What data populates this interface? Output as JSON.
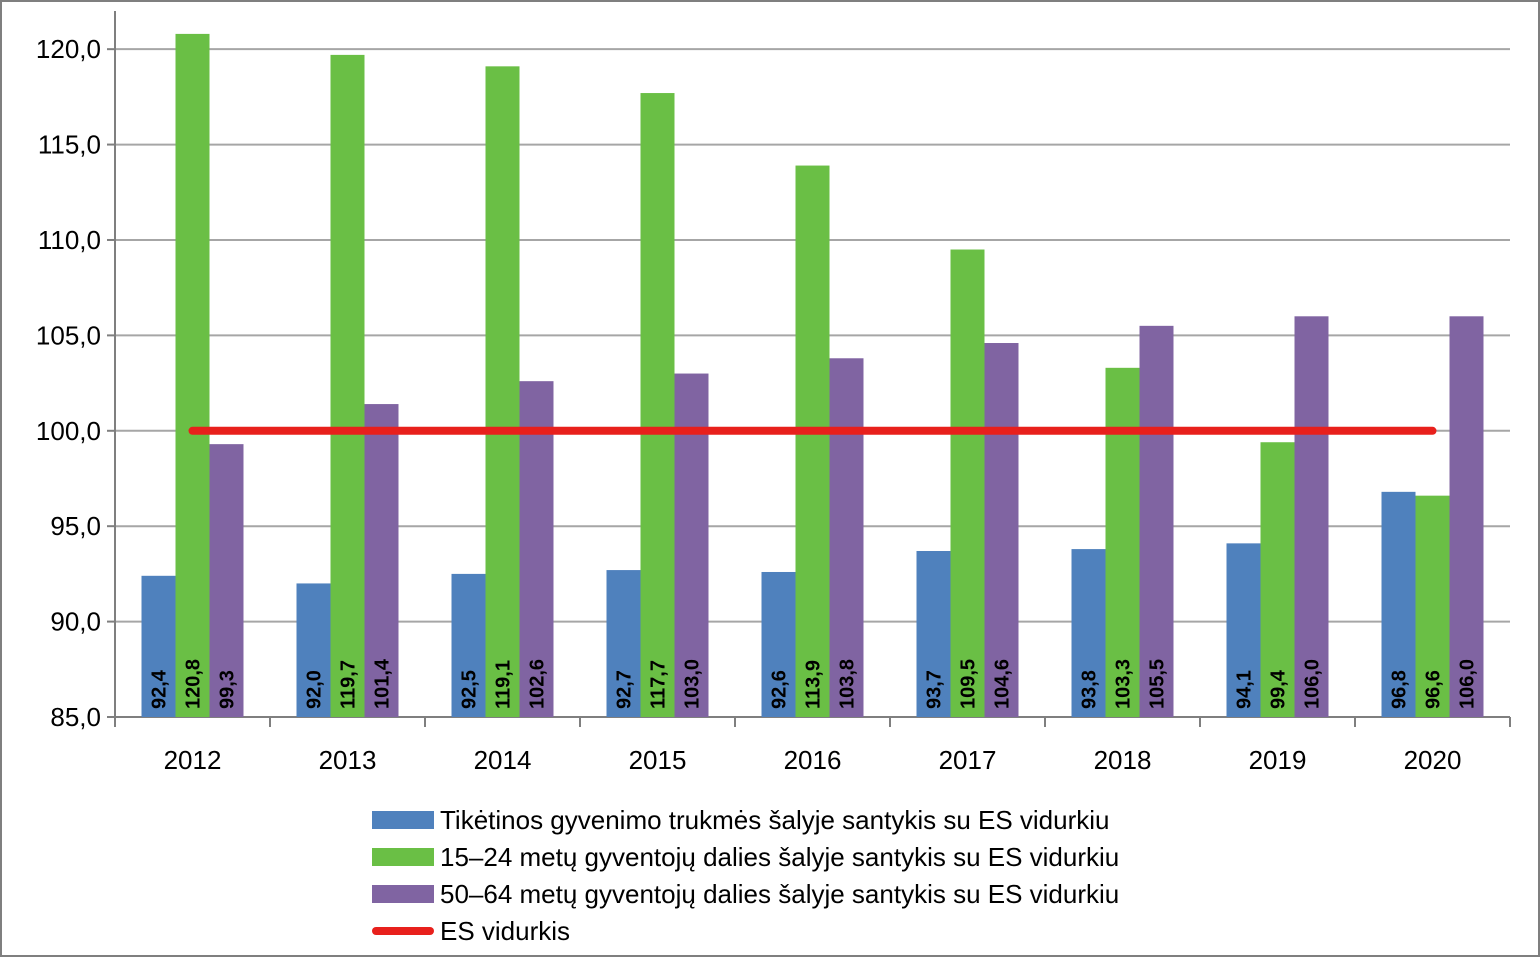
{
  "chart_data": {
    "type": "bar",
    "categories": [
      "2012",
      "2013",
      "2014",
      "2015",
      "2016",
      "2017",
      "2018",
      "2019",
      "2020"
    ],
    "series": [
      {
        "name": "Tikėtinos gyvenimo trukmės šalyje santykis su ES vidurkiu",
        "color": "#4f81bd",
        "values": [
          92.4,
          92.0,
          92.5,
          92.7,
          92.6,
          93.7,
          93.8,
          94.1,
          96.8
        ],
        "labels": [
          "92,4",
          "92,0",
          "92,5",
          "92,7",
          "92,6",
          "93,7",
          "93,8",
          "94,1",
          "96,8"
        ]
      },
      {
        "name": "15–24 metų gyventojų dalies šalyje santykis su ES vidurkiu",
        "color": "#6abf45",
        "values": [
          120.8,
          119.7,
          119.1,
          117.7,
          113.9,
          109.5,
          103.3,
          99.4,
          96.6
        ],
        "labels": [
          "120,8",
          "119,7",
          "119,1",
          "117,7",
          "113,9",
          "109,5",
          "103,3",
          "99,4",
          "96,6"
        ]
      },
      {
        "name": "50–64 metų gyventojų dalies šalyje santykis su ES vidurkiu",
        "color": "#8064a2",
        "values": [
          99.3,
          101.4,
          102.6,
          103.0,
          103.8,
          104.6,
          105.5,
          106.0,
          106.0
        ],
        "labels": [
          "99,3",
          "101,4",
          "102,6",
          "103,0",
          "103,8",
          "104,6",
          "105,5",
          "106,0",
          "106,0"
        ]
      }
    ],
    "reference_line": {
      "name": "ES  vidurkis",
      "value": 100.0,
      "color": "#e8201c"
    },
    "y_ticks": [
      "85,0",
      "90,0",
      "95,0",
      "100,0",
      "105,0",
      "110,0",
      "115,0",
      "120,0"
    ],
    "ylim": [
      85,
      122
    ],
    "grid": true,
    "gridline_color": "#a6a6a6",
    "legend_position": "bottom",
    "title": "",
    "xlabel": "",
    "ylabel": ""
  }
}
